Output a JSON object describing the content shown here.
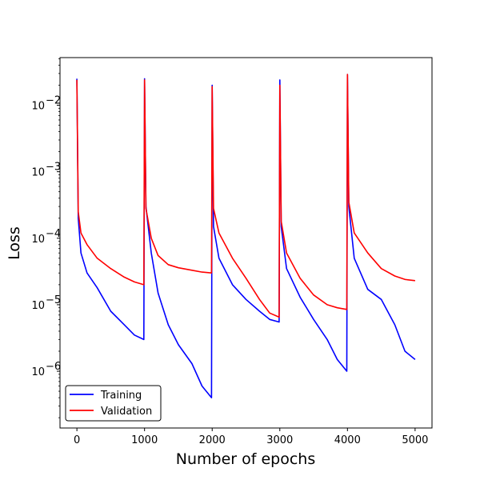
{
  "chart_data": {
    "type": "line",
    "title": "",
    "xlabel": "Number of epochs",
    "ylabel": "Loss",
    "xlim": [
      -250,
      5250
    ],
    "ylim": [
      1.4e-07,
      0.052
    ],
    "yscale": "log",
    "grid": false,
    "legend_position": "lower-left",
    "x_ticks": [
      {
        "value": 0,
        "label": "0"
      },
      {
        "value": 1000,
        "label": "1000"
      },
      {
        "value": 2000,
        "label": "2000"
      },
      {
        "value": 3000,
        "label": "3000"
      },
      {
        "value": 4000,
        "label": "4000"
      },
      {
        "value": 5000,
        "label": "5000"
      }
    ],
    "y_ticks": [
      {
        "value": 1e-06,
        "base": "10",
        "exp": "−6"
      },
      {
        "value": 1e-05,
        "base": "10",
        "exp": "−5"
      },
      {
        "value": 0.0001,
        "base": "10",
        "exp": "−4"
      },
      {
        "value": 0.001,
        "base": "10",
        "exp": "−3"
      },
      {
        "value": 0.01,
        "base": "10",
        "exp": "−2"
      }
    ],
    "series": [
      {
        "name": "Training",
        "color": "#0000ff",
        "x": [
          0,
          20,
          60,
          150,
          300,
          500,
          700,
          850,
          990,
          1000,
          1020,
          1100,
          1200,
          1350,
          1500,
          1700,
          1850,
          1990,
          2000,
          2020,
          2100,
          2300,
          2500,
          2700,
          2850,
          2990,
          3000,
          3020,
          3100,
          3300,
          3500,
          3700,
          3850,
          3990,
          4000,
          4020,
          4100,
          4300,
          4500,
          4700,
          4850,
          5000
        ],
        "y": [
          0.025,
          0.0002,
          6e-05,
          3e-05,
          1.8e-05,
          8e-06,
          5e-06,
          3.5e-06,
          3e-06,
          0.025,
          0.0003,
          6e-05,
          1.5e-05,
          5e-06,
          2.5e-06,
          1.3e-06,
          6e-07,
          4e-07,
          0.02,
          0.00015,
          5e-05,
          2e-05,
          1.2e-05,
          8e-06,
          6e-06,
          5.5e-06,
          0.024,
          0.00015,
          3.5e-05,
          1.3e-05,
          6e-06,
          3e-06,
          1.5e-06,
          1e-06,
          0.029,
          0.0003,
          5e-05,
          1.7e-05,
          1.2e-05,
          5e-06,
          2e-06,
          1.5e-06
        ]
      },
      {
        "name": "Validation",
        "color": "#ff0000",
        "x": [
          0,
          20,
          60,
          150,
          300,
          500,
          700,
          850,
          990,
          1000,
          1020,
          1100,
          1200,
          1350,
          1500,
          1700,
          1850,
          1990,
          2000,
          2020,
          2100,
          2300,
          2500,
          2700,
          2850,
          2990,
          3000,
          3020,
          3100,
          3300,
          3500,
          3700,
          3850,
          3990,
          4000,
          4020,
          4100,
          4300,
          4500,
          4700,
          4850,
          5000
        ],
        "y": [
          0.024,
          0.00025,
          0.00012,
          8e-05,
          5e-05,
          3.5e-05,
          2.6e-05,
          2.2e-05,
          2e-05,
          0.024,
          0.00028,
          0.0001,
          5.5e-05,
          4e-05,
          3.6e-05,
          3.3e-05,
          3.1e-05,
          3e-05,
          0.019,
          0.00028,
          0.00012,
          5e-05,
          2.5e-05,
          1.2e-05,
          7.5e-06,
          6.5e-06,
          0.02,
          0.00018,
          6e-05,
          2.5e-05,
          1.4e-05,
          1e-05,
          9e-06,
          8.5e-06,
          0.029,
          0.00035,
          0.00012,
          6e-05,
          3.5e-05,
          2.7e-05,
          2.4e-05,
          2.3e-05
        ]
      }
    ]
  }
}
